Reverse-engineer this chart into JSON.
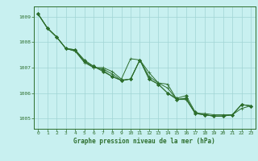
{
  "title": "Graphe pression niveau de la mer (hPa)",
  "background_color": "#c8f0f0",
  "line_color": "#2d6e2d",
  "grid_color": "#a0d4d4",
  "xlim": [
    -0.5,
    23.5
  ],
  "ylim": [
    1004.6,
    1009.4
  ],
  "yticks": [
    1005,
    1006,
    1007,
    1008,
    1009
  ],
  "xticks": [
    0,
    1,
    2,
    3,
    4,
    5,
    6,
    7,
    8,
    9,
    10,
    11,
    12,
    13,
    14,
    15,
    16,
    17,
    18,
    19,
    20,
    21,
    22,
    23
  ],
  "series": [
    [
      1009.1,
      1008.55,
      1008.2,
      1007.75,
      1007.65,
      1007.2,
      1007.0,
      1007.0,
      1006.85,
      1006.55,
      1007.35,
      1007.3,
      1006.65,
      1006.4,
      1006.35,
      1005.75,
      1005.75,
      1005.2,
      1005.2,
      1005.15,
      1005.15,
      1005.15,
      1005.4,
      1005.5
    ],
    [
      1009.1,
      1008.55,
      1008.2,
      1007.75,
      1007.65,
      1007.25,
      1007.0,
      1006.95,
      1006.75,
      1006.5,
      1006.55,
      1007.3,
      1006.8,
      1006.4,
      1006.2,
      1005.75,
      1005.8,
      1005.2,
      1005.15,
      1005.1,
      1005.1,
      1005.15,
      1005.55,
      1005.5
    ],
    [
      1009.1,
      1008.55,
      1008.2,
      1007.75,
      1007.7,
      1007.25,
      1007.05,
      1006.85,
      1006.65,
      1006.5,
      1006.55,
      1007.3,
      1006.55,
      1006.35,
      1006.0,
      1005.75,
      1005.8,
      1005.2,
      1005.15,
      1005.1,
      1005.1,
      1005.15,
      1005.55,
      1005.5
    ],
    [
      1009.1,
      1008.55,
      1008.2,
      1007.75,
      1007.7,
      1007.3,
      1007.05,
      1006.9,
      1006.65,
      1006.5,
      1006.55,
      1007.3,
      1006.55,
      1006.35,
      1006.0,
      1005.8,
      1005.9,
      1005.25,
      1005.15,
      1005.1,
      1005.1,
      1005.15,
      1005.55,
      1005.5
    ]
  ],
  "title_fontsize": 5.5,
  "tick_fontsize": 4.5
}
